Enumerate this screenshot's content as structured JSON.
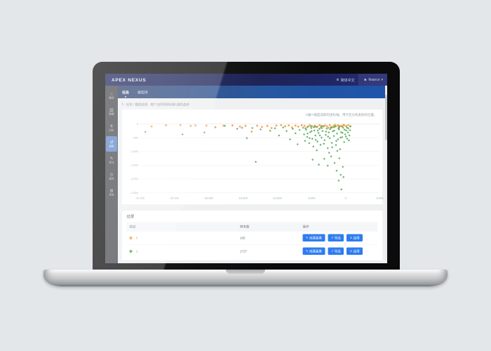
{
  "theme": {
    "accent": "#2e7cf0",
    "orange": "#f59a3c",
    "green": "#54a758",
    "header_navy": "#1d2563",
    "nav_blue": "#2456a4",
    "sidebar_gray": "#4b4c52",
    "active_item_blue": "#5e86c6"
  },
  "header": {
    "logo": "APEX NEXUS",
    "language": "简体中文",
    "globe_glyph": "⊕",
    "user": "finance",
    "user_glyph": "☻",
    "caret_glyph": "▾"
  },
  "topnav": {
    "items": [
      {
        "label": "任务"
      },
      {
        "label": "模型库"
      }
    ]
  },
  "sidebar": {
    "items": [
      {
        "label": "概览",
        "glyph": "⌂"
      },
      {
        "label": "数据",
        "glyph": "▤"
      },
      {
        "label": "分析",
        "glyph": "↯"
      },
      {
        "label": "训练",
        "glyph": "↺"
      },
      {
        "label": "标注",
        "glyph": "✎"
      },
      {
        "label": "监控",
        "glyph": "⊙"
      },
      {
        "label": "系统",
        "glyph": "⊞"
      }
    ]
  },
  "breadcrumb": {
    "refresh_glyph": "↻",
    "text": "任务 / 模型结果 - 客户流失预测训练-随机森林"
  },
  "chart_data": {
    "type": "scatter",
    "title": "",
    "note": "X轴/Y轴是选取的坐标轴，用于区分各类别的位置。",
    "xlabel": "",
    "ylabel": "",
    "xlim": [
      -30000,
      5000
    ],
    "ylim": [
      -2500,
      0
    ],
    "grid": "horizontal",
    "legend_position": "none",
    "xticks": [
      {
        "v": -30000,
        "label": "-30,000"
      },
      {
        "v": -25000,
        "label": "-25,000"
      },
      {
        "v": -20000,
        "label": "-20,000"
      },
      {
        "v": -15000,
        "label": "-15,000"
      },
      {
        "v": -10000,
        "label": "-10,000"
      },
      {
        "v": -5000,
        "label": "-5,000"
      },
      {
        "v": 0,
        "label": "0"
      },
      {
        "v": 5000,
        "label": "5,000"
      }
    ],
    "yticks": [
      {
        "v": 0,
        "label": "0"
      },
      {
        "v": -500,
        "label": "-500"
      },
      {
        "v": -1000,
        "label": "-1,000"
      },
      {
        "v": -1500,
        "label": "-1,500"
      },
      {
        "v": -2000,
        "label": "-2,000"
      },
      {
        "v": -2500,
        "label": "-2,500"
      }
    ],
    "series": [
      {
        "name": "0",
        "marker": "circle",
        "color": "#f59a3c",
        "points": [
          [
            -28300,
            -90
          ],
          [
            -26200,
            -50
          ],
          [
            -24100,
            -45
          ],
          [
            -22600,
            -70
          ],
          [
            -21900,
            -55
          ],
          [
            -20300,
            -60
          ],
          [
            -19000,
            -120
          ],
          [
            -17800,
            -65
          ],
          [
            -16500,
            -55
          ],
          [
            -15400,
            -95
          ],
          [
            -14600,
            -70
          ],
          [
            -13700,
            -280
          ],
          [
            -12900,
            -65
          ],
          [
            -12200,
            -110
          ],
          [
            -11400,
            -75
          ],
          [
            -10800,
            -150
          ],
          [
            -10100,
            -60
          ],
          [
            -9400,
            -45
          ],
          [
            -8800,
            -85
          ],
          [
            -8300,
            -55
          ],
          [
            -7800,
            -130
          ],
          [
            -7300,
            -60
          ],
          [
            -6900,
            -95
          ],
          [
            -6400,
            -50
          ],
          [
            -6000,
            -70
          ],
          [
            -5600,
            -120
          ],
          [
            -5200,
            -45
          ],
          [
            -4900,
            -80
          ],
          [
            -4500,
            -60
          ],
          [
            -4100,
            -100
          ],
          [
            -3800,
            -40
          ],
          [
            -3600,
            -130
          ],
          [
            -3400,
            -75
          ],
          [
            -3000,
            -55
          ],
          [
            -2700,
            -90
          ],
          [
            -2500,
            -140
          ],
          [
            -2300,
            -45
          ],
          [
            -2000,
            -110
          ],
          [
            -1700,
            -65
          ],
          [
            -1500,
            -40
          ],
          [
            -1400,
            -85
          ],
          [
            -1100,
            -50
          ],
          [
            -900,
            -120
          ],
          [
            -800,
            -70
          ],
          [
            -500,
            -95
          ],
          [
            -300,
            -35
          ],
          [
            -200,
            -55
          ],
          [
            100,
            -75
          ],
          [
            400,
            -45
          ],
          [
            700,
            -85
          ]
        ]
      },
      {
        "name": "1",
        "marker": "diamond",
        "color": "#54a758",
        "points": [
          [
            -29200,
            -290
          ],
          [
            -23800,
            -380
          ],
          [
            -20600,
            -310
          ],
          [
            -17600,
            -70
          ],
          [
            -15800,
            -180
          ],
          [
            -15100,
            -140
          ],
          [
            -14400,
            -520
          ],
          [
            -13600,
            -150
          ],
          [
            -13100,
            -1380
          ],
          [
            -12400,
            -200
          ],
          [
            -11000,
            -250
          ],
          [
            -10300,
            -160
          ],
          [
            -9700,
            -420
          ],
          [
            -9100,
            -130
          ],
          [
            -8600,
            -260
          ],
          [
            -8100,
            -560
          ],
          [
            -7700,
            -180
          ],
          [
            -7300,
            -340
          ],
          [
            -7000,
            -740
          ],
          [
            -6700,
            -220
          ],
          [
            -6200,
            -140
          ],
          [
            -6050,
            -380
          ],
          [
            -5900,
            -620
          ],
          [
            -5750,
            -210
          ],
          [
            -5600,
            -470
          ],
          [
            -5450,
            -90
          ],
          [
            -5300,
            -700
          ],
          [
            -5150,
            -300
          ],
          [
            -5000,
            -150
          ],
          [
            -4850,
            -540
          ],
          [
            -4700,
            -820
          ],
          [
            -4550,
            -240
          ],
          [
            -4400,
            -420
          ],
          [
            -4250,
            -110
          ],
          [
            -4100,
            -640
          ],
          [
            -3950,
            -330
          ],
          [
            -3800,
            -180
          ],
          [
            -3650,
            -760
          ],
          [
            -3500,
            -500
          ],
          [
            -3350,
            -260
          ],
          [
            -3200,
            -90
          ],
          [
            -3050,
            -590
          ],
          [
            -2900,
            -400
          ],
          [
            -2750,
            -170
          ],
          [
            -2600,
            -880
          ],
          [
            -2450,
            -310
          ],
          [
            -2300,
            -520
          ],
          [
            -2150,
            -130
          ],
          [
            -2000,
            -690
          ],
          [
            -1850,
            -270
          ],
          [
            -1700,
            -440
          ],
          [
            -1550,
            -100
          ],
          [
            -1400,
            -770
          ],
          [
            -1250,
            -350
          ],
          [
            -1100,
            -560
          ],
          [
            -950,
            -200
          ],
          [
            -800,
            -920
          ],
          [
            -650,
            -300
          ],
          [
            -500,
            -480
          ],
          [
            -350,
            -140
          ],
          [
            -200,
            -660
          ],
          [
            -50,
            -380
          ],
          [
            100,
            -240
          ],
          [
            250,
            -540
          ],
          [
            400,
            -160
          ],
          [
            550,
            -420
          ],
          [
            700,
            -90
          ],
          [
            -5850,
            -160
          ],
          [
            -5550,
            -350
          ],
          [
            -5250,
            -520
          ],
          [
            -4950,
            -260
          ],
          [
            -4650,
            -120
          ],
          [
            -4350,
            -580
          ],
          [
            -4050,
            -240
          ],
          [
            -3750,
            -420
          ],
          [
            -3450,
            -150
          ],
          [
            -3150,
            -720
          ],
          [
            -2850,
            -280
          ],
          [
            -2550,
            -460
          ],
          [
            -2250,
            -190
          ],
          [
            -1950,
            -850
          ],
          [
            -1650,
            -240
          ],
          [
            -1350,
            -620
          ],
          [
            -1050,
            -160
          ],
          [
            -750,
            -500
          ],
          [
            -450,
            -330
          ],
          [
            -150,
            -210
          ],
          [
            50,
            -460
          ],
          [
            200,
            -130
          ],
          [
            350,
            -310
          ],
          [
            500,
            -600
          ],
          [
            650,
            -230
          ],
          [
            -4200,
            -960
          ],
          [
            -2400,
            -1050
          ],
          [
            -1200,
            -980
          ],
          [
            -2050,
            -140
          ],
          [
            -3550,
            -80
          ],
          [
            -1750,
            -120
          ],
          [
            -950,
            -100
          ],
          [
            -550,
            -80
          ],
          [
            -5050,
            -90
          ],
          [
            -4450,
            -100
          ],
          [
            -2100,
            -1180
          ],
          [
            -1600,
            -1420
          ],
          [
            -900,
            -1250
          ],
          [
            -400,
            -1560
          ],
          [
            -1300,
            -1700
          ],
          [
            -700,
            -1850
          ],
          [
            -1000,
            -2060
          ],
          [
            -300,
            -1930
          ],
          [
            -600,
            -2380
          ],
          [
            -4800,
            -1300
          ],
          [
            -3900,
            -1480
          ],
          [
            -3100,
            -1270
          ],
          [
            -2600,
            -1520
          ]
        ]
      }
    ]
  },
  "results": {
    "title": "结果",
    "columns": [
      "类别",
      "样本数",
      "操作"
    ],
    "rows": [
      {
        "class_label": "0",
        "count": "165"
      },
      {
        "class_label": "1",
        "count": "1727"
      }
    ],
    "actions": [
      {
        "label": "创建画像",
        "glyph": "✎"
      },
      {
        "label": "导出",
        "glyph": "↗"
      },
      {
        "label": "应用",
        "glyph": "⊙"
      }
    ],
    "more": "····"
  }
}
